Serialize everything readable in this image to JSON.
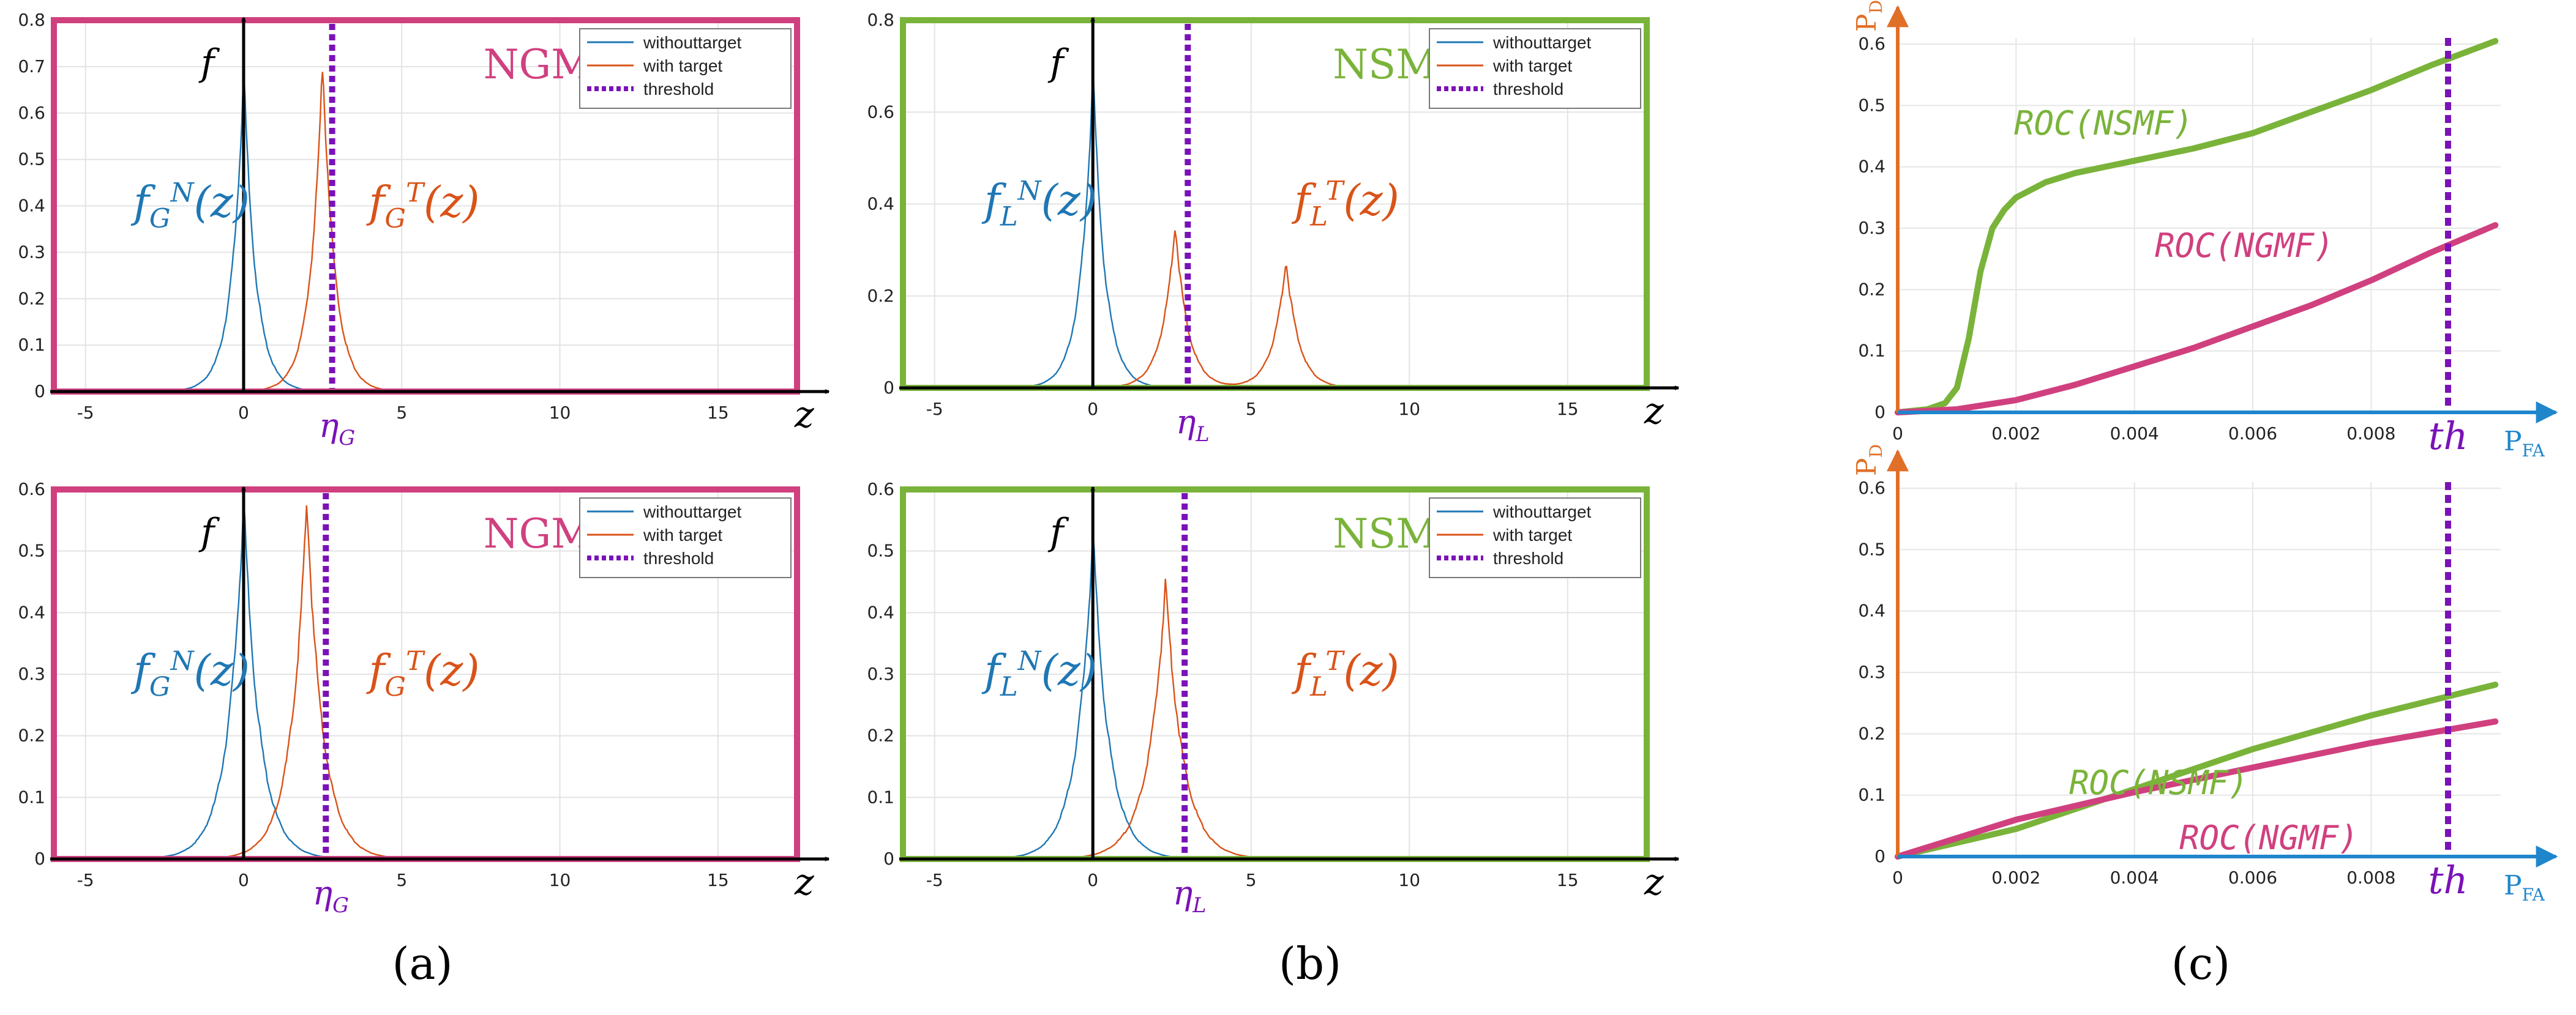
{
  "colors": {
    "no_target": "#1f77b4",
    "with_target": "#d95319",
    "threshold": "#7a12b8",
    "ngmf": "#d0407f",
    "nsmf": "#7ab33a",
    "axis_pd": "#e07028",
    "axis_pfa": "#1f86cc"
  },
  "captions": {
    "a": "(a)",
    "b": "(b)",
    "c": "(c)"
  },
  "chart_data": [
    {
      "id": "a-top",
      "type": "line",
      "title": "NGMF",
      "xlim": [
        -6,
        17.5
      ],
      "ylim": [
        0,
        0.8
      ],
      "xticks": [
        -5,
        0,
        5,
        10,
        15
      ],
      "yticks": [
        0,
        0.1,
        0.2,
        0.3,
        0.4,
        0.5,
        0.6,
        0.7,
        0.8
      ],
      "ytick_labels": [
        "0",
        "0.1",
        "0.2",
        "0.3",
        "0.4",
        "0.5",
        "0.6",
        "0.7",
        "0.8"
      ],
      "xlabel": "z",
      "ylabel": "f",
      "threshold_label": "η_G",
      "curve_labels": {
        "no_target": "f_G^N(z)",
        "with_target": "f_G^T(z)"
      },
      "legend": [
        "withouttarget",
        "with target",
        "threshold"
      ],
      "threshold": 2.8,
      "series": [
        {
          "name": "withouttarget",
          "peaks": [
            {
              "mu": 0,
              "amp": 0.69,
              "scale": 0.38
            }
          ]
        },
        {
          "name": "with target",
          "peaks": [
            {
              "mu": 2.5,
              "amp": 0.72,
              "scale": 0.38
            }
          ]
        }
      ]
    },
    {
      "id": "b-top",
      "type": "line",
      "title": "NSMF",
      "xlim": [
        -6,
        17.5
      ],
      "ylim": [
        0,
        0.8
      ],
      "xticks": [
        -5,
        0,
        5,
        10,
        15
      ],
      "yticks": [
        0,
        0.2,
        0.4,
        0.6,
        0.8
      ],
      "ytick_labels": [
        "0",
        "0.2",
        "0.4",
        "0.6",
        "0.8"
      ],
      "xlabel": "z",
      "ylabel": "f",
      "threshold_label": "η_L",
      "curve_labels": {
        "no_target": "f_L^N(z)",
        "with_target": "f_L^T(z)"
      },
      "legend": [
        "withouttarget",
        "with target",
        "threshold"
      ],
      "threshold": 3.0,
      "series": [
        {
          "name": "withouttarget",
          "peaks": [
            {
              "mu": 0,
              "amp": 0.69,
              "scale": 0.38
            }
          ]
        },
        {
          "name": "with target",
          "peaks": [
            {
              "mu": 2.6,
              "amp": 0.36,
              "scale": 0.4
            },
            {
              "mu": 6.1,
              "amp": 0.28,
              "scale": 0.4
            }
          ]
        }
      ]
    },
    {
      "id": "a-bottom",
      "type": "line",
      "title": "NGMF",
      "xlim": [
        -6,
        17.5
      ],
      "ylim": [
        0,
        0.6
      ],
      "xticks": [
        -5,
        0,
        5,
        10,
        15
      ],
      "yticks": [
        0,
        0.1,
        0.2,
        0.3,
        0.4,
        0.5,
        0.6
      ],
      "ytick_labels": [
        "0",
        "0.1",
        "0.2",
        "0.3",
        "0.4",
        "0.5",
        "0.6"
      ],
      "xlabel": "z",
      "ylabel": "f",
      "threshold_label": "η_G",
      "curve_labels": {
        "no_target": "f_G^N(z)",
        "with_target": "f_G^T(z)"
      },
      "legend": [
        "withouttarget",
        "with target",
        "threshold"
      ],
      "threshold": 2.6,
      "series": [
        {
          "name": "withouttarget",
          "peaks": [
            {
              "mu": 0,
              "amp": 0.58,
              "scale": 0.5
            }
          ]
        },
        {
          "name": "with target",
          "peaks": [
            {
              "mu": 2.0,
              "amp": 0.58,
              "scale": 0.5
            }
          ]
        }
      ]
    },
    {
      "id": "b-bottom",
      "type": "line",
      "title": "NSMF",
      "xlim": [
        -6,
        17.5
      ],
      "ylim": [
        0,
        0.6
      ],
      "xticks": [
        -5,
        0,
        5,
        10,
        15
      ],
      "yticks": [
        0,
        0.1,
        0.2,
        0.3,
        0.4,
        0.5,
        0.6
      ],
      "ytick_labels": [
        "0",
        "0.1",
        "0.2",
        "0.3",
        "0.4",
        "0.5",
        "0.6"
      ],
      "xlabel": "z",
      "ylabel": "f",
      "threshold_label": "η_L",
      "curve_labels": {
        "no_target": "f_L^N(z)",
        "with_target": "f_L^T(z)"
      },
      "legend": [
        "withouttarget",
        "with target",
        "threshold"
      ],
      "threshold": 2.9,
      "series": [
        {
          "name": "withouttarget",
          "peaks": [
            {
              "mu": 0,
              "amp": 0.53,
              "scale": 0.5
            }
          ]
        },
        {
          "name": "with target",
          "peaks": [
            {
              "mu": 2.3,
              "amp": 0.45,
              "scale": 0.55
            }
          ]
        }
      ]
    },
    {
      "id": "c-top",
      "type": "line",
      "xlim": [
        0,
        0.0105
      ],
      "ylim": [
        0,
        0.63
      ],
      "xticks": [
        0,
        0.002,
        0.004,
        0.006,
        0.008
      ],
      "xtick_labels": [
        "0",
        "0.002",
        "0.004",
        "0.006",
        "0.008"
      ],
      "yticks": [
        0,
        0.1,
        0.2,
        0.3,
        0.4,
        0.5,
        0.6
      ],
      "ytick_labels": [
        "0",
        "0.1",
        "0.2",
        "0.3",
        "0.4",
        "0.5",
        "0.6"
      ],
      "ylabel": "P_D",
      "xlabel": "P_FA",
      "threshold_label": "th",
      "threshold": 0.0093,
      "series": [
        {
          "name": "ROC(NSMF)",
          "x": [
            0,
            0.0005,
            0.0008,
            0.001,
            0.0012,
            0.0014,
            0.0016,
            0.0018,
            0.002,
            0.0025,
            0.003,
            0.004,
            0.005,
            0.006,
            0.007,
            0.008,
            0.009,
            0.0101
          ],
          "y": [
            0,
            0.005,
            0.015,
            0.04,
            0.12,
            0.23,
            0.3,
            0.33,
            0.35,
            0.375,
            0.39,
            0.41,
            0.43,
            0.455,
            0.49,
            0.525,
            0.565,
            0.605
          ]
        },
        {
          "name": "ROC(NGMF)",
          "x": [
            0,
            0.001,
            0.002,
            0.003,
            0.004,
            0.005,
            0.006,
            0.007,
            0.008,
            0.009,
            0.0101
          ],
          "y": [
            0,
            0.005,
            0.02,
            0.045,
            0.075,
            0.105,
            0.14,
            0.175,
            0.215,
            0.26,
            0.305
          ]
        }
      ]
    },
    {
      "id": "c-bottom",
      "type": "line",
      "xlim": [
        0,
        0.0105
      ],
      "ylim": [
        0,
        0.63
      ],
      "xticks": [
        0,
        0.002,
        0.004,
        0.006,
        0.008
      ],
      "xtick_labels": [
        "0",
        "0.002",
        "0.004",
        "0.006",
        "0.008"
      ],
      "yticks": [
        0,
        0.1,
        0.2,
        0.3,
        0.4,
        0.5,
        0.6
      ],
      "ytick_labels": [
        "0",
        "0.1",
        "0.2",
        "0.3",
        "0.4",
        "0.5",
        "0.6"
      ],
      "ylabel": "P_D",
      "xlabel": "P_FA",
      "threshold_label": "th",
      "threshold": 0.0093,
      "series": [
        {
          "name": "ROC(NSMF)",
          "x": [
            0,
            0.002,
            0.004,
            0.006,
            0.008,
            0.0101
          ],
          "y": [
            0,
            0.045,
            0.11,
            0.175,
            0.23,
            0.28
          ]
        },
        {
          "name": "ROC(NGMF)",
          "x": [
            0,
            0.002,
            0.004,
            0.006,
            0.008,
            0.0101
          ],
          "y": [
            0,
            0.06,
            0.105,
            0.145,
            0.185,
            0.22
          ]
        }
      ]
    }
  ]
}
